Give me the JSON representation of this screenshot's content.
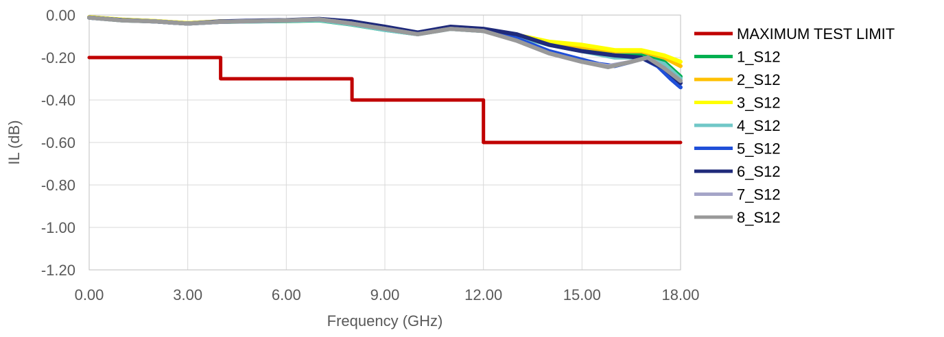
{
  "chart_data": {
    "type": "line",
    "title": "",
    "xlabel": "Frequency (GHz)",
    "ylabel": "IL (dB)",
    "xlim": [
      0,
      18
    ],
    "ylim": [
      -1.2,
      0
    ],
    "xticks": [
      "0.00",
      "3.00",
      "6.00",
      "9.00",
      "12.00",
      "15.00",
      "18.00"
    ],
    "yticks": [
      "0.00",
      "-0.20",
      "-0.40",
      "-0.60",
      "-0.80",
      "-1.00",
      "-1.20"
    ],
    "grid": true,
    "legend_position": "right",
    "series": [
      {
        "name": "MAXIMUM TEST LIMIT",
        "color": "#C00000",
        "step": true,
        "x": [
          0,
          4,
          4,
          8,
          8,
          12,
          12,
          18
        ],
        "y": [
          -0.2,
          -0.2,
          -0.3,
          -0.3,
          -0.4,
          -0.4,
          -0.6,
          -0.6
        ]
      },
      {
        "name": "1_S12",
        "color": "#00B050",
        "x": [
          0,
          1,
          2,
          3,
          4,
          5,
          6,
          7,
          8,
          9,
          10,
          11,
          12,
          13,
          14,
          15,
          16,
          16.8,
          17.5,
          18
        ],
        "y": [
          -0.012,
          -0.025,
          -0.03,
          -0.04,
          -0.032,
          -0.03,
          -0.028,
          -0.025,
          -0.045,
          -0.07,
          -0.09,
          -0.065,
          -0.075,
          -0.1,
          -0.14,
          -0.16,
          -0.19,
          -0.19,
          -0.22,
          -0.29
        ]
      },
      {
        "name": "2_S12",
        "color": "#FFC000",
        "x": [
          0,
          1,
          2,
          3,
          4,
          5,
          6,
          7,
          8,
          9,
          10,
          11,
          12,
          13,
          14,
          15,
          16,
          16.8,
          17.5,
          18
        ],
        "y": [
          -0.01,
          -0.022,
          -0.028,
          -0.038,
          -0.03,
          -0.028,
          -0.026,
          -0.023,
          -0.042,
          -0.068,
          -0.088,
          -0.063,
          -0.072,
          -0.095,
          -0.13,
          -0.15,
          -0.17,
          -0.17,
          -0.2,
          -0.24
        ]
      },
      {
        "name": "3_S12",
        "color": "#FFFF00",
        "x": [
          0,
          1,
          2,
          3,
          4,
          5,
          6,
          7,
          8,
          9,
          10,
          11,
          12,
          13,
          14,
          15,
          16,
          16.8,
          17.5,
          18
        ],
        "y": [
          -0.01,
          -0.022,
          -0.028,
          -0.038,
          -0.03,
          -0.028,
          -0.026,
          -0.023,
          -0.042,
          -0.068,
          -0.087,
          -0.062,
          -0.071,
          -0.093,
          -0.125,
          -0.14,
          -0.165,
          -0.165,
          -0.19,
          -0.22
        ]
      },
      {
        "name": "4_S12",
        "color": "#70C7C7",
        "x": [
          0,
          1,
          2,
          3,
          4,
          5,
          6,
          7,
          8,
          9,
          10,
          11,
          12,
          13,
          14,
          15,
          16,
          16.8,
          17.5,
          18
        ],
        "y": [
          -0.012,
          -0.024,
          -0.03,
          -0.04,
          -0.032,
          -0.03,
          -0.027,
          -0.024,
          -0.044,
          -0.07,
          -0.09,
          -0.065,
          -0.075,
          -0.1,
          -0.14,
          -0.17,
          -0.2,
          -0.2,
          -0.23,
          -0.3
        ]
      },
      {
        "name": "5_S12",
        "color": "#1F4FD8",
        "x": [
          0,
          1,
          2,
          3,
          4,
          5,
          6,
          7,
          8,
          9,
          10,
          11,
          12,
          13,
          14,
          15,
          15.5,
          16,
          16.5,
          16.8,
          17.3,
          17.7,
          18
        ],
        "y": [
          -0.012,
          -0.024,
          -0.03,
          -0.04,
          -0.032,
          -0.028,
          -0.025,
          -0.02,
          -0.035,
          -0.06,
          -0.085,
          -0.058,
          -0.07,
          -0.11,
          -0.17,
          -0.21,
          -0.23,
          -0.24,
          -0.22,
          -0.2,
          -0.24,
          -0.3,
          -0.34
        ]
      },
      {
        "name": "6_S12",
        "color": "#1F2A7A",
        "x": [
          0,
          1,
          2,
          3,
          4,
          5,
          6,
          7,
          8,
          9,
          10,
          11,
          12,
          13,
          14,
          15,
          16,
          16.8,
          17.5,
          18
        ],
        "y": [
          -0.012,
          -0.024,
          -0.03,
          -0.04,
          -0.03,
          -0.026,
          -0.024,
          -0.018,
          -0.03,
          -0.055,
          -0.082,
          -0.055,
          -0.065,
          -0.09,
          -0.14,
          -0.17,
          -0.19,
          -0.2,
          -0.25,
          -0.32
        ]
      },
      {
        "name": "7_S12",
        "color": "#A5A5C8",
        "x": [
          0,
          1,
          2,
          3,
          4,
          5,
          6,
          7,
          8,
          9,
          10,
          11,
          12,
          13,
          14,
          15,
          15.8,
          16.5,
          17,
          17.5,
          18
        ],
        "y": [
          -0.012,
          -0.025,
          -0.03,
          -0.04,
          -0.032,
          -0.028,
          -0.025,
          -0.02,
          -0.04,
          -0.065,
          -0.09,
          -0.065,
          -0.075,
          -0.12,
          -0.18,
          -0.22,
          -0.24,
          -0.22,
          -0.2,
          -0.25,
          -0.31
        ]
      },
      {
        "name": "8_S12",
        "color": "#999999",
        "x": [
          0,
          1,
          2,
          3,
          4,
          5,
          6,
          7,
          8,
          9,
          10,
          11,
          12,
          13,
          14,
          15,
          15.8,
          16.5,
          17,
          17.5,
          18
        ],
        "y": [
          -0.012,
          -0.025,
          -0.03,
          -0.04,
          -0.032,
          -0.028,
          -0.025,
          -0.02,
          -0.04,
          -0.065,
          -0.09,
          -0.065,
          -0.075,
          -0.12,
          -0.18,
          -0.22,
          -0.245,
          -0.22,
          -0.2,
          -0.25,
          -0.31
        ]
      }
    ]
  }
}
